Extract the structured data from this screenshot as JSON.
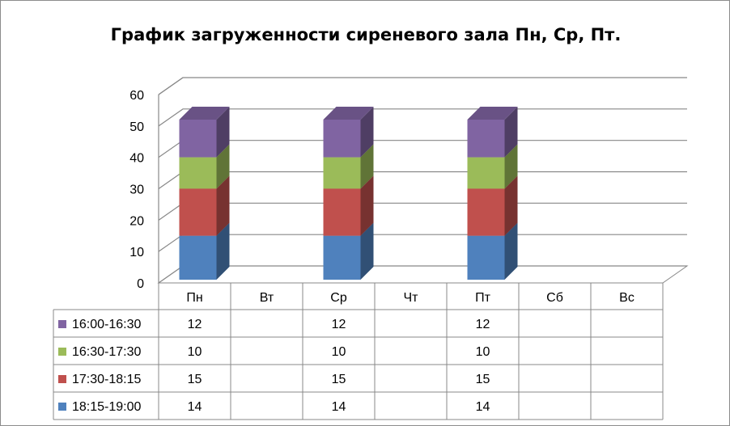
{
  "chart_data": {
    "type": "bar",
    "stacked": true,
    "view": "3d-column",
    "title": "График загруженности сиреневого зала Пн, Ср, Пт.",
    "categories": [
      "Пн",
      "Вт",
      "Ср",
      "Чт",
      "Пт",
      "Сб",
      "Вс"
    ],
    "ylim": [
      0,
      60
    ],
    "yticks": [
      0,
      10,
      20,
      30,
      40,
      50,
      60
    ],
    "grid": true,
    "legend": "data-table",
    "series": [
      {
        "name": "16:00-16:30",
        "color": "#8064a2",
        "values": [
          12,
          null,
          12,
          null,
          12,
          null,
          null
        ]
      },
      {
        "name": "16:30-17:30",
        "color": "#9bbb59",
        "values": [
          10,
          null,
          10,
          null,
          10,
          null,
          null
        ]
      },
      {
        "name": "17:30-18:15",
        "color": "#c0504d",
        "values": [
          15,
          null,
          15,
          null,
          15,
          null,
          null
        ]
      },
      {
        "name": "18:15-19:00",
        "color": "#4f81bd",
        "values": [
          14,
          null,
          14,
          null,
          14,
          null,
          null
        ]
      }
    ]
  }
}
